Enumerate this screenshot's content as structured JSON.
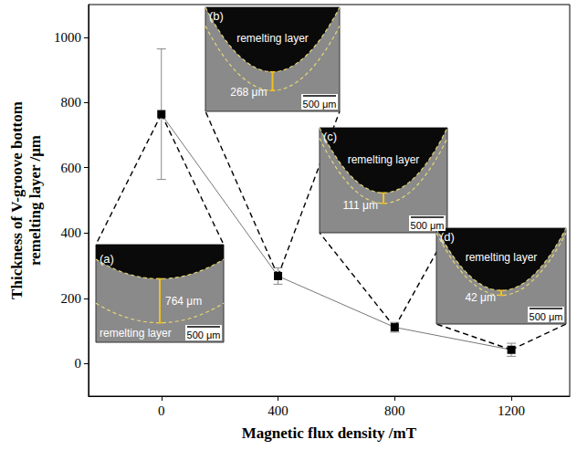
{
  "chart_data": {
    "type": "line",
    "x": [
      0,
      400,
      800,
      1200
    ],
    "values": [
      764,
      268,
      111,
      42
    ],
    "errors": [
      200,
      25,
      15,
      20
    ],
    "color": "#000000",
    "marker": "square",
    "line_style": "solid",
    "xlabel": "Magnetic flux density /mT",
    "ylabel": "Thickness of V-groove bottom\nremelting layer /μm",
    "xlim": [
      -250,
      1400
    ],
    "xticks": [
      0,
      400,
      800,
      1200
    ],
    "ylim": [
      -100,
      1100
    ],
    "yticks": [
      0,
      200,
      400,
      600,
      800,
      1000
    ],
    "grid": false,
    "insets": [
      {
        "label": "(a)",
        "text": "remelting layer",
        "thickness": "764 μm",
        "scale_bar": "500 μm"
      },
      {
        "label": "(b)",
        "text": "remelting layer",
        "thickness": "268 μm",
        "scale_bar": "500 μm"
      },
      {
        "label": "(c)",
        "text": "remelting layer",
        "thickness": "111 μm",
        "scale_bar": "500 μm"
      },
      {
        "label": "(d)",
        "text": "remelting layer",
        "thickness": "42 μm",
        "scale_bar": "500 μm"
      }
    ]
  }
}
